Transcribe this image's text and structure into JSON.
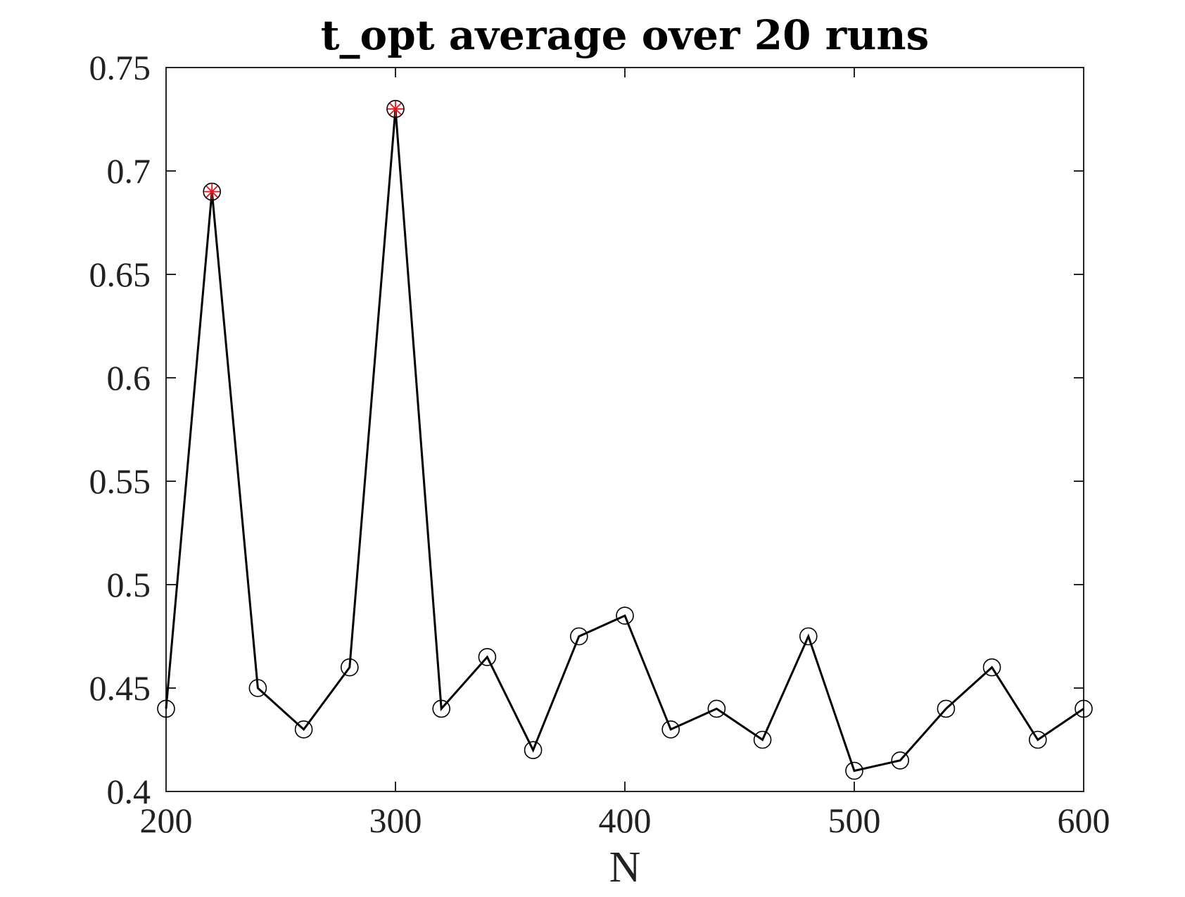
{
  "chart_data": {
    "type": "line",
    "title": "t_opt average over 20 runs",
    "xlabel": "N",
    "ylabel": "",
    "xlim": [
      200,
      600
    ],
    "ylim": [
      0.4,
      0.75
    ],
    "xticks": [
      200,
      300,
      400,
      500,
      600
    ],
    "xtick_labels": [
      "200",
      "300",
      "400",
      "500",
      "600"
    ],
    "yticks": [
      0.4,
      0.45,
      0.5,
      0.55,
      0.6,
      0.65,
      0.7,
      0.75
    ],
    "ytick_labels": [
      "0.4",
      "0.45",
      "0.5",
      "0.55",
      "0.6",
      "0.65",
      "0.7",
      "0.75"
    ],
    "grid": false,
    "series": [
      {
        "x": [
          200,
          220,
          240,
          260,
          280,
          300,
          320,
          340,
          360,
          380,
          400,
          420,
          440,
          460,
          480,
          500,
          520,
          540,
          560,
          580,
          600
        ],
        "values": [
          0.44,
          0.69,
          0.45,
          0.43,
          0.46,
          0.73,
          0.44,
          0.465,
          0.42,
          0.475,
          0.485,
          0.43,
          0.44,
          0.425,
          0.475,
          0.41,
          0.415,
          0.44,
          0.46,
          0.425,
          0.44
        ],
        "line_color": "#000000",
        "marker": "open-circle"
      }
    ],
    "highlighted_points": {
      "x": [
        220,
        300
      ],
      "values": [
        0.69,
        0.73
      ],
      "marker": "red-asterisk",
      "color": "#e8141b"
    }
  }
}
